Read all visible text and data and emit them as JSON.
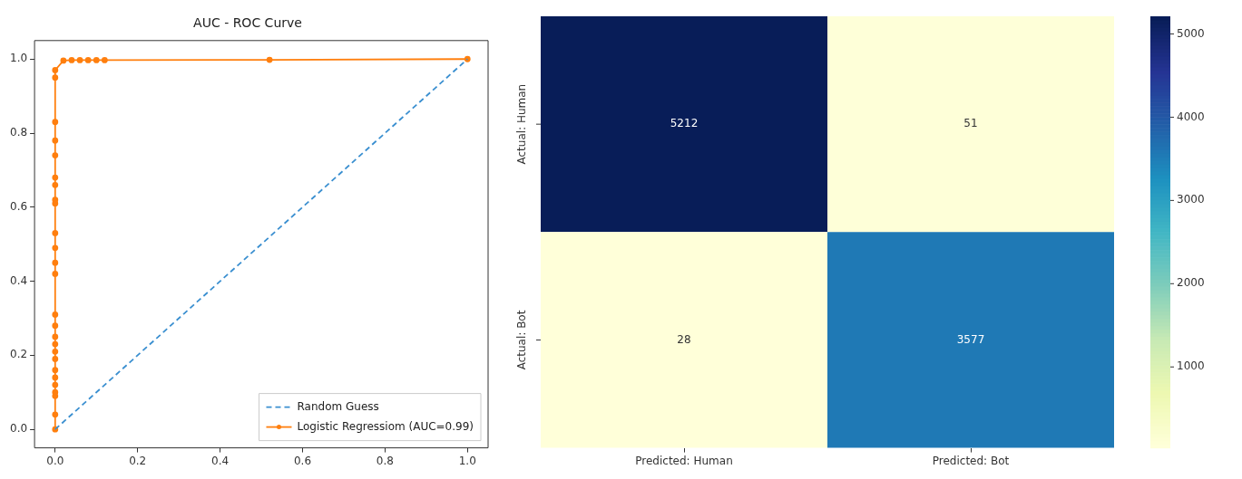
{
  "chart_data": [
    {
      "type": "line",
      "title": "AUC - ROC Curve",
      "xlim": [
        -0.05,
        1.05
      ],
      "ylim": [
        -0.05,
        1.05
      ],
      "xticks": [
        {
          "value": 0,
          "label": "0.0"
        },
        {
          "value": 0.2,
          "label": "0.2"
        },
        {
          "value": 0.4,
          "label": "0.4"
        },
        {
          "value": 0.6,
          "label": "0.6"
        },
        {
          "value": 0.8,
          "label": "0.8"
        },
        {
          "value": 1,
          "label": "1.0"
        }
      ],
      "yticks": [
        {
          "value": 0,
          "label": "0.0"
        },
        {
          "value": 0.2,
          "label": "0.2"
        },
        {
          "value": 0.4,
          "label": "0.4"
        },
        {
          "value": 0.6,
          "label": "0.6"
        },
        {
          "value": 0.8,
          "label": "0.8"
        },
        {
          "value": 1,
          "label": "1.0"
        }
      ],
      "grid": false,
      "legend": "bottom right",
      "series": [
        {
          "name": "Random Guess",
          "color": "#3a8fd0",
          "marker": "none",
          "line_style": "dashed",
          "x": [
            0,
            1
          ],
          "values": [
            0,
            1
          ]
        },
        {
          "name": "Logistic Regressiom (AUC=0.99)",
          "color": "#ff7f0e",
          "marker": "circle",
          "line_style": "solid",
          "x": [
            0,
            0,
            0,
            0,
            0,
            0,
            0,
            0,
            0,
            0,
            0,
            0,
            0,
            0,
            0,
            0,
            0,
            0,
            0,
            0,
            0,
            0,
            0,
            0,
            0,
            0,
            0.02,
            0.04,
            0.06,
            0.08,
            0.1,
            0.12,
            0.52,
            1
          ],
          "values": [
            0,
            0.04,
            0.09,
            0.1,
            0.12,
            0.14,
            0.16,
            0.19,
            0.21,
            0.23,
            0.25,
            0.28,
            0.31,
            0.42,
            0.45,
            0.49,
            0.53,
            0.61,
            0.62,
            0.66,
            0.68,
            0.74,
            0.78,
            0.83,
            0.95,
            0.97,
            0.996,
            0.997,
            0.997,
            0.997,
            0.997,
            0.997,
            0.998,
            1
          ]
        }
      ]
    },
    {
      "type": "heatmap",
      "categories": [
        "Predicted: Human",
        "Predicted: Bot"
      ],
      "y_categories": [
        "Actual: Human",
        "Actual: Bot"
      ],
      "cells": [
        [
          5212,
          51
        ],
        [
          28,
          3577
        ]
      ],
      "data_labels": true,
      "clim": [
        28,
        5212
      ],
      "cticks": [
        1000,
        2000,
        3000,
        4000,
        5000
      ]
    }
  ]
}
